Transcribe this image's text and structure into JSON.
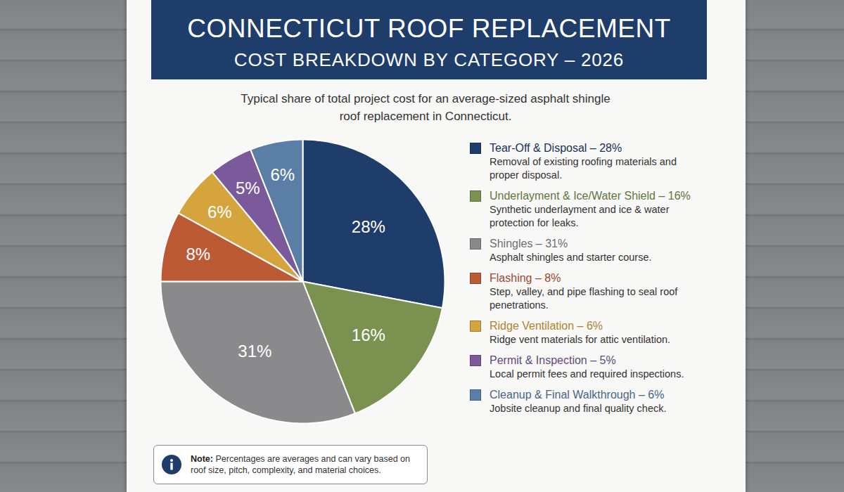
{
  "chart_data": {
    "type": "pie",
    "title": "CONNECTICUT ROOF REPLACEMENT",
    "subtitle": "COST BREAKDOWN BY CATEGORY – 2026",
    "description": "Typical share of total project cost for an average-sized asphalt shingle roof replacement in Connecticut.",
    "categories": [
      "Tear-Off & Disposal – 28%",
      "Underlayment & Ice/Water Shield – 16%",
      "Shingles – 31%",
      "Flashing – 8%",
      "Ridge Ventilation – 6%",
      "Permit & Inspection – 5%",
      "Cleanup & Final Walkthrough – 6%"
    ],
    "values": [
      28,
      16,
      31,
      8,
      6,
      5,
      6
    ],
    "value_labels": [
      "28%",
      "16%",
      "31%",
      "8%",
      "6%",
      "5%",
      "6%"
    ],
    "colors": [
      "#1f3d6b",
      "#7a9150",
      "#8a8a8c",
      "#bd5a36",
      "#d6a43c",
      "#7b5a9b",
      "#5a7ea6"
    ],
    "descriptions": [
      "Removal of existing roofing materials and proper disposal.",
      "Synthetic underlayment and ice & water protection for leaks.",
      "Asphalt shingles and starter course.",
      "Step, valley, and pipe flashing to seal roof penetrations.",
      "Ridge vent materials for attic ventilation.",
      "Local permit fees and required inspections.",
      "Jobsite cleanup and final quality check."
    ],
    "data_labels": true,
    "legend": "right",
    "note_label": "Note:",
    "note": "Percentages are averages and can vary based on roof size, pitch, complexity, and material choices."
  }
}
